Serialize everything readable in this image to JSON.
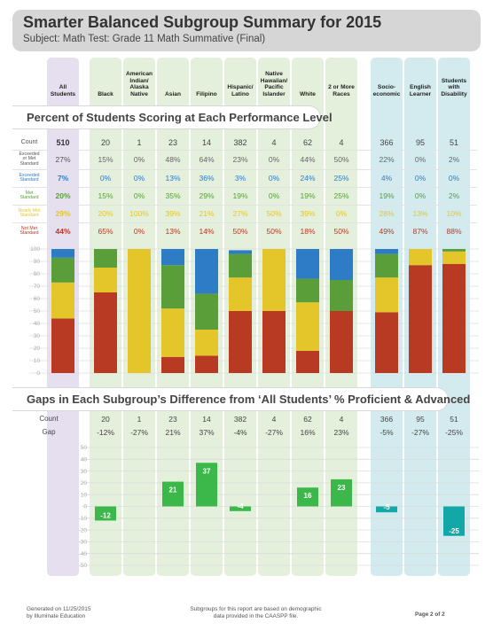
{
  "header": {
    "title": "Smarter Balanced Subgroup Summary for 2015",
    "subtitle": "Subject: Math  Test: Grade 11 Math Summative (Final)"
  },
  "colors": {
    "exceeded": "#2e7bc6",
    "met": "#5a9e3a",
    "nearly": "#e4c62a",
    "not_met": "#b83a22",
    "all_bg": "#e6dff0",
    "group_bg": "#e4efdc",
    "program_bg": "#d3ebee",
    "gap_positive": "#3cb84a",
    "gap_negative_group": "#3cb84a",
    "gap_negative_program": "#13a7a7"
  },
  "columns": [
    {
      "label": "All\nStudents"
    },
    {
      "label": "Black"
    },
    {
      "label": "American\nIndian/\nAlaska\nNative"
    },
    {
      "label": "Asian"
    },
    {
      "label": "Filipino"
    },
    {
      "label": "Hispanic/\nLatino"
    },
    {
      "label": "Native\nHawaiian/\nPacific\nIslander"
    },
    {
      "label": "White"
    },
    {
      "label": "2 or More\nRaces"
    },
    {
      "label": "Socio-\neconomic"
    },
    {
      "label": "English\nLearner"
    },
    {
      "label": "Students\nwith\nDisability"
    }
  ],
  "section1_title": "Percent of Students Scoring at Each Performance Level",
  "section2_title": "Gaps in Each Subgroup’s Difference from ‘All Students’ % Proficient & Advanced",
  "row_labels": {
    "count": "Count",
    "exceeded_or_met": "Exceeded\nor Met\nStandard",
    "exceeded": "Exceeded\nStandard",
    "met": "Met\nStandard",
    "nearly": "Nearly Met\nStandard",
    "not_met": "Not Met\nStandard",
    "gap": "Gap"
  },
  "table": {
    "count": [
      "510",
      "20",
      "1",
      "23",
      "14",
      "382",
      "4",
      "62",
      "4",
      "366",
      "95",
      "51"
    ],
    "exceeded_or_met": [
      "27%",
      "15%",
      "0%",
      "48%",
      "64%",
      "23%",
      "0%",
      "44%",
      "50%",
      "22%",
      "0%",
      "2%"
    ],
    "exceeded": [
      "7%",
      "0%",
      "0%",
      "13%",
      "36%",
      "3%",
      "0%",
      "24%",
      "25%",
      "4%",
      "0%",
      "0%"
    ],
    "met": [
      "20%",
      "15%",
      "0%",
      "35%",
      "29%",
      "19%",
      "0%",
      "19%",
      "25%",
      "19%",
      "0%",
      "2%"
    ],
    "nearly": [
      "29%",
      "20%",
      "100%",
      "39%",
      "21%",
      "27%",
      "50%",
      "39%",
      "0%",
      "28%",
      "13%",
      "10%"
    ],
    "not_met": [
      "44%",
      "65%",
      "0%",
      "13%",
      "14%",
      "50%",
      "50%",
      "18%",
      "50%",
      "49%",
      "87%",
      "88%"
    ]
  },
  "gap_table": {
    "count": [
      "20",
      "1",
      "23",
      "14",
      "382",
      "4",
      "62",
      "4",
      "366",
      "95",
      "51"
    ],
    "gap": [
      "-12%",
      "-27%",
      "21%",
      "37%",
      "-4%",
      "-27%",
      "16%",
      "23%",
      "-5%",
      "-27%",
      "-25%"
    ]
  },
  "chart_data": [
    {
      "type": "bar",
      "stacked": true,
      "categories": [
        "All Students",
        "Black",
        "American Indian/ Alaska Native",
        "Asian",
        "Filipino",
        "Hispanic/ Latino",
        "Native Hawaiian/ Pacific Islander",
        "White",
        "2 or More Races",
        "Socio-economic",
        "English Learner",
        "Students with Disability"
      ],
      "series": [
        {
          "name": "Not Met Standard",
          "values": [
            44,
            65,
            0,
            13,
            14,
            50,
            50,
            18,
            50,
            49,
            87,
            88
          ]
        },
        {
          "name": "Nearly Met Standard",
          "values": [
            29,
            20,
            100,
            39,
            21,
            27,
            50,
            39,
            0,
            28,
            13,
            10
          ]
        },
        {
          "name": "Met Standard",
          "values": [
            20,
            15,
            0,
            35,
            29,
            19,
            0,
            19,
            25,
            19,
            0,
            2
          ]
        },
        {
          "name": "Exceeded Standard",
          "values": [
            7,
            0,
            0,
            13,
            36,
            3,
            0,
            24,
            25,
            4,
            0,
            0
          ]
        }
      ],
      "ylim": [
        0,
        100
      ],
      "yticks": [
        0,
        10,
        20,
        30,
        40,
        50,
        60,
        70,
        80,
        90,
        100
      ],
      "grid": true
    },
    {
      "type": "bar",
      "categories": [
        "Black",
        "American Indian/ Alaska Native",
        "Asian",
        "Filipino",
        "Hispanic/ Latino",
        "Native Hawaiian/ Pacific Islander",
        "White",
        "2 or More Races",
        "Socio-economic",
        "English Learner",
        "Students with Disability"
      ],
      "values": [
        -12,
        null,
        21,
        37,
        -4,
        null,
        16,
        23,
        -5,
        null,
        -25
      ],
      "labels": [
        "-12",
        "",
        "21",
        "37",
        "-4",
        "",
        "16",
        "23",
        "-5",
        "",
        "-25"
      ],
      "ylim": [
        -50,
        50
      ],
      "yticks": [
        -50,
        -40,
        -30,
        -20,
        -10,
        0,
        10,
        20,
        30,
        40,
        50
      ],
      "grid": true
    }
  ],
  "footer": {
    "generated": "Generated on 11/25/2015\nby Illuminate Education",
    "note": "Subgroups for this report are based on demographic\ndata provided in the CAASPP file.",
    "page": "Page 2 of 2"
  }
}
